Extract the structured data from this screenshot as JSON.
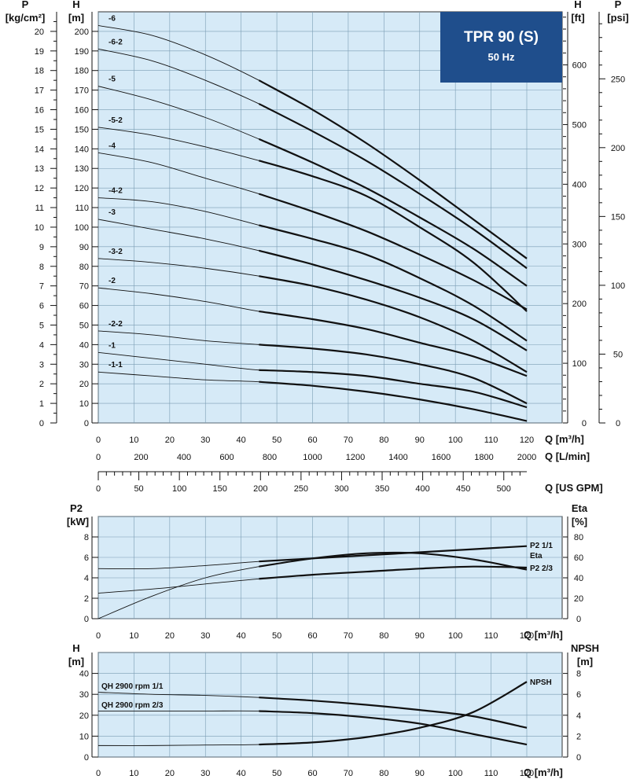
{
  "title_box": {
    "name": "TPR 90 (S)",
    "freq": "50 Hz"
  },
  "colors": {
    "plot_bg": "#d6eaf7",
    "grid": "#7a9cb3",
    "line": "#111111",
    "title_bg": "#1f4e8c"
  },
  "chart_data": [
    {
      "type": "line",
      "name": "head-curves",
      "xlim": [
        0,
        120
      ],
      "ylim": [
        0,
        210
      ],
      "x_ticks": [
        0,
        10,
        20,
        30,
        40,
        50,
        60,
        70,
        80,
        90,
        100,
        110,
        120
      ],
      "y_ticks": [
        0,
        10,
        20,
        30,
        40,
        50,
        60,
        70,
        80,
        90,
        100,
        110,
        120,
        130,
        140,
        150,
        160,
        170,
        180,
        190,
        200
      ],
      "axes": {
        "H_m": {
          "title": "H",
          "unit": "[m]"
        },
        "P_kgcm2": {
          "title": "P",
          "unit": "[kg/cm²]",
          "ticks": [
            0,
            1,
            2,
            3,
            4,
            5,
            6,
            7,
            8,
            9,
            10,
            11,
            12,
            13,
            14,
            15,
            16,
            17,
            18,
            19,
            20
          ]
        },
        "H_ft": {
          "title": "H",
          "unit": "[ft]",
          "ticks": [
            0,
            100,
            200,
            300,
            400,
            500,
            600
          ]
        },
        "P_psi": {
          "title": "P",
          "unit": "[psi]",
          "ticks": [
            0,
            50,
            100,
            150,
            200,
            250
          ]
        },
        "Q_m3h": {
          "label": "Q [m³/h]"
        },
        "Q_Lmin": {
          "label": "Q [L/min]",
          "ticks": [
            0,
            200,
            400,
            600,
            800,
            1000,
            1200,
            1400,
            1600,
            1800,
            2000
          ]
        },
        "Q_usgpm": {
          "label": "Q [US GPM]",
          "ticks": [
            0,
            50,
            100,
            150,
            200,
            250,
            300,
            350,
            400,
            450,
            500
          ]
        }
      },
      "series": [
        {
          "name": "-6",
          "x": [
            0,
            15,
            30,
            45,
            60,
            75,
            90,
            105,
            120
          ],
          "values": [
            203,
            198,
            188,
            175,
            160,
            143,
            124,
            104,
            84
          ]
        },
        {
          "name": "-6-2",
          "x": [
            0,
            15,
            30,
            45,
            60,
            75,
            90,
            105,
            120
          ],
          "values": [
            191,
            185,
            175,
            163,
            149,
            134,
            117,
            99,
            79
          ]
        },
        {
          "name": "-5",
          "x": [
            0,
            15,
            30,
            45,
            60,
            75,
            90,
            105,
            120
          ],
          "values": [
            172,
            165,
            156,
            145,
            133,
            120,
            105,
            89,
            70
          ]
        },
        {
          "name": "-5-2",
          "x": [
            0,
            15,
            30,
            45,
            60,
            75,
            90,
            105,
            120
          ],
          "values": [
            151,
            147,
            141,
            134,
            126,
            116,
            100,
            82,
            57
          ]
        },
        {
          "name": "-4",
          "x": [
            0,
            15,
            30,
            45,
            60,
            75,
            90,
            105,
            120
          ],
          "values": [
            138,
            133,
            125,
            117,
            108,
            98,
            86,
            73,
            58
          ]
        },
        {
          "name": "-4-2",
          "x": [
            0,
            15,
            30,
            45,
            60,
            75,
            90,
            105,
            120
          ],
          "values": [
            115,
            113,
            108,
            101,
            94,
            86,
            74,
            60,
            42
          ]
        },
        {
          "name": "-3",
          "x": [
            0,
            15,
            30,
            45,
            60,
            75,
            90,
            105,
            120
          ],
          "values": [
            104,
            99,
            94,
            88,
            81,
            73,
            64,
            53,
            37
          ]
        },
        {
          "name": "-3-2",
          "x": [
            0,
            15,
            30,
            45,
            60,
            75,
            90,
            105,
            120
          ],
          "values": [
            84,
            82,
            79,
            75,
            70,
            63,
            54,
            42,
            26
          ]
        },
        {
          "name": "-2",
          "x": [
            0,
            15,
            30,
            45,
            60,
            75,
            90,
            105,
            120
          ],
          "values": [
            69,
            66,
            62,
            57,
            53,
            48,
            41,
            34,
            24
          ]
        },
        {
          "name": "-2-2",
          "x": [
            0,
            15,
            30,
            45,
            60,
            75,
            90,
            105,
            120
          ],
          "values": [
            47,
            45,
            42,
            40,
            38,
            35,
            30,
            23,
            10
          ]
        },
        {
          "name": "-1",
          "x": [
            0,
            15,
            30,
            45,
            60,
            75,
            90,
            105,
            120
          ],
          "values": [
            36,
            33,
            30,
            27,
            26,
            24,
            20,
            16,
            8
          ]
        },
        {
          "name": "-1-1",
          "x": [
            0,
            15,
            30,
            45,
            60,
            75,
            90,
            105,
            120
          ],
          "values": [
            26,
            24,
            22,
            21,
            19,
            16,
            12,
            7,
            1
          ]
        }
      ]
    },
    {
      "type": "line",
      "name": "power-efficiency",
      "xlim": [
        0,
        120
      ],
      "ylim": [
        0,
        10
      ],
      "x_ticks": [
        0,
        10,
        20,
        30,
        40,
        50,
        60,
        70,
        80,
        90,
        100,
        110,
        120
      ],
      "xlabel": "Q [m³/h]",
      "y_left": {
        "title": "P2",
        "unit": "[kW]",
        "ticks": [
          0,
          2,
          4,
          6,
          8
        ]
      },
      "y_right": {
        "title": "Eta",
        "unit": "[%]",
        "ticks": [
          0,
          20,
          40,
          60,
          80
        ]
      },
      "series": [
        {
          "name": "P2 1/1",
          "axis": "left",
          "x": [
            0,
            15,
            30,
            45,
            60,
            75,
            90,
            105,
            120
          ],
          "values": [
            4.9,
            4.9,
            5.2,
            5.6,
            5.9,
            6.2,
            6.5,
            6.8,
            7.1
          ]
        },
        {
          "name": "Eta",
          "axis": "right",
          "x": [
            0,
            15,
            30,
            45,
            60,
            75,
            90,
            105,
            120
          ],
          "values": [
            0,
            22,
            40,
            51,
            59,
            64,
            64,
            58,
            48
          ]
        },
        {
          "name": "P2 2/3",
          "axis": "left",
          "x": [
            0,
            15,
            30,
            45,
            60,
            75,
            90,
            105,
            120
          ],
          "values": [
            2.5,
            2.9,
            3.4,
            3.9,
            4.3,
            4.6,
            4.9,
            5.1,
            5.0
          ]
        }
      ]
    },
    {
      "type": "line",
      "name": "qh-npsh",
      "xlim": [
        0,
        120
      ],
      "ylim": [
        0,
        50
      ],
      "x_ticks": [
        0,
        10,
        20,
        30,
        40,
        50,
        60,
        70,
        80,
        90,
        100,
        110,
        120
      ],
      "xlabel": "Q [m³/h]",
      "y_left": {
        "title": "H",
        "unit": "[m]",
        "ticks": [
          0,
          10,
          20,
          30,
          40
        ]
      },
      "y_right": {
        "title": "NPSH",
        "unit": "[m]",
        "ticks": [
          0,
          2,
          4,
          6,
          8
        ]
      },
      "series": [
        {
          "name": "QH 2900 rpm 1/1",
          "axis": "left",
          "x": [
            0,
            15,
            30,
            45,
            60,
            75,
            90,
            105,
            120
          ],
          "values": [
            31,
            30,
            29.5,
            28.5,
            27,
            25,
            22.5,
            19.5,
            14
          ]
        },
        {
          "name": "QH 2900 rpm 2/3",
          "axis": "left",
          "x": [
            0,
            15,
            30,
            45,
            60,
            75,
            90,
            105,
            120
          ],
          "values": [
            22,
            22,
            22,
            22,
            21,
            19,
            16,
            11,
            6
          ]
        },
        {
          "name": "NPSH",
          "axis": "right",
          "x": [
            0,
            15,
            30,
            45,
            60,
            75,
            90,
            105,
            120
          ],
          "values": [
            1.1,
            1.1,
            1.15,
            1.2,
            1.4,
            1.9,
            2.8,
            4.3,
            7.2
          ]
        }
      ]
    }
  ]
}
